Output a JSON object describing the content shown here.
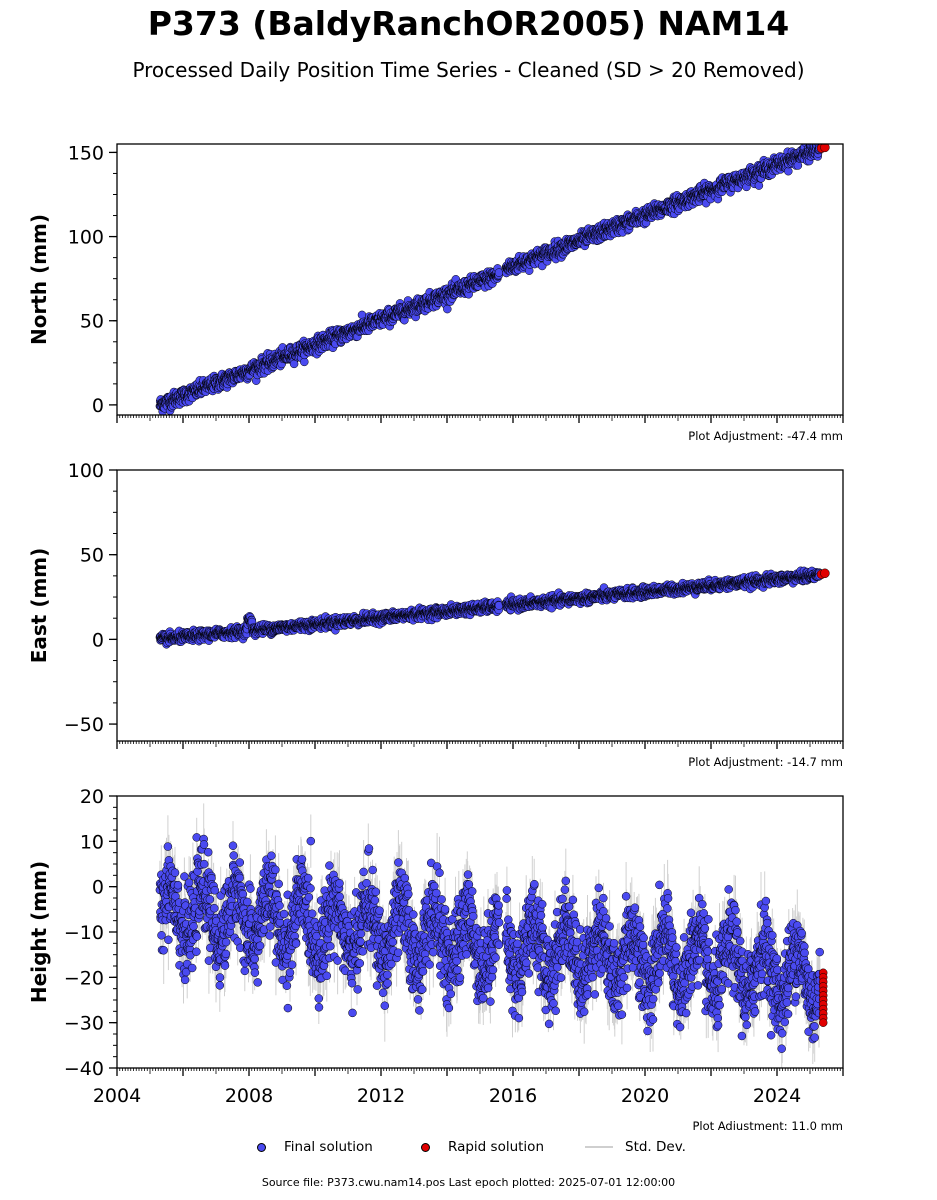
{
  "title": "P373 (BaldyRanchOR2005) NAM14",
  "subtitle": "Processed Daily Position Time Series - Cleaned (SD > 20 Removed)",
  "legend": {
    "final": "Final solution",
    "rapid": "Rapid solution",
    "std": "Std. Dev."
  },
  "source": "Source file: P373.cwu.nam14.pos  Last epoch plotted: 2025-07-01 12:00:00",
  "colors": {
    "final": "#4a4af0",
    "rapid": "#e00000",
    "std": "#999999"
  },
  "chart_data": [
    {
      "type": "scatter",
      "ylabel": "North (mm)",
      "adjustment": "Plot Adjustment: -47.4 mm",
      "xlim": [
        2004,
        2026
      ],
      "ylim": [
        -6,
        155
      ],
      "yticks": [
        0,
        50,
        100,
        150
      ],
      "trend": {
        "x0": 2005.3,
        "y0": 0,
        "rate": 7.55,
        "gap_offset": 1.5
      },
      "noise": 2.2,
      "gap": [
        2015.58,
        2015.78
      ],
      "series": [
        {
          "name": "Final solution",
          "x": [
            2005.3,
            2008.0,
            2012.0,
            2015.5,
            2016.0,
            2020.0,
            2024.0,
            2025.3
          ],
          "y": [
            0,
            20,
            50,
            75,
            77,
            108,
            138,
            151
          ]
        },
        {
          "name": "Rapid solution",
          "x": [
            2025.35,
            2025.45
          ],
          "y": [
            152.5,
            153
          ]
        }
      ]
    },
    {
      "type": "scatter",
      "ylabel": "East (mm)",
      "adjustment": "Plot Adjustment: -14.7 mm",
      "xlim": [
        2004,
        2026
      ],
      "ylim": [
        -60,
        100
      ],
      "yticks": [
        -50,
        0,
        50,
        100
      ],
      "trend": {
        "x0": 2005.3,
        "y0": 0,
        "rate": 1.9,
        "gap_offset": 0
      },
      "noise": 1.4,
      "gap": [
        2015.58,
        2015.78
      ],
      "series": [
        {
          "name": "Final solution",
          "x": [
            2005.3,
            2008.0,
            2012.0,
            2015.5,
            2016.0,
            2020.0,
            2024.0,
            2025.3
          ],
          "y": [
            0,
            7,
            15,
            21,
            22,
            28,
            36,
            38
          ]
        },
        {
          "name": "Rapid solution",
          "x": [
            2025.35,
            2025.45
          ],
          "y": [
            38.5,
            39
          ]
        }
      ]
    },
    {
      "type": "scatter",
      "ylabel": "Height (mm)",
      "adjustment": "Plot Adjustment: 11.0 mm",
      "xlim": [
        2004,
        2026
      ],
      "ylim": [
        -40,
        20
      ],
      "yticks": [
        -40,
        -30,
        -20,
        -10,
        0,
        10,
        20
      ],
      "xticks": [
        2004,
        2008,
        2012,
        2016,
        2020,
        2024
      ],
      "trend": {
        "x0": 2005.3,
        "y0": -5,
        "rate": -0.75,
        "gap_offset": 0
      },
      "seasonal_amplitude": 6,
      "noise": 4.5,
      "gap": [
        2015.58,
        2015.78
      ],
      "series": [
        {
          "name": "Final solution",
          "x": [
            2005.3,
            2008.0,
            2012.0,
            2016.0,
            2020.0,
            2024.0,
            2025.3
          ],
          "y": [
            -5,
            -7,
            -10,
            -13,
            -17,
            -20,
            -21
          ]
        },
        {
          "name": "Rapid solution",
          "x": [
            2025.35,
            2025.4,
            2025.45
          ],
          "y": [
            -19,
            -25,
            -30
          ]
        }
      ]
    }
  ]
}
